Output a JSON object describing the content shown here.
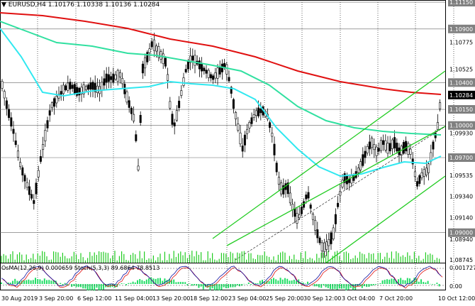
{
  "header": {
    "symbol": "EURUSD,H4",
    "ohlc": "1.10176 1.10338 1.10136 1.10284"
  },
  "indicator_header": "OsMA(12,26,9) 0.000659 Stoch(5,3,3) 89.6864 78.8513",
  "price_axis": {
    "labels": [
      "1.11150",
      "1.10900",
      "1.10775",
      "1.10525",
      "1.10400",
      "1.10284",
      "1.10150",
      "1.10000",
      "1.09930",
      "1.09700",
      "1.09535",
      "1.09340",
      "1.09140",
      "1.09000",
      "1.08940",
      "1.08745"
    ],
    "highlighted": [
      "1.11150",
      "1.10900",
      "1.10400",
      "1.10150",
      "1.10000",
      "1.09700",
      "1.09000"
    ],
    "current": "1.10284"
  },
  "sub_axis": {
    "labels": [
      "0.001727",
      "0.00"
    ]
  },
  "time_axis": [
    "30 Aug 2019",
    "3 Sep 20:00",
    "6 Sep 12:00",
    "11 Sep 04:00",
    "13 Sep 20:00",
    "18 Sep 12:00",
    "23 Sep 04:00",
    "25 Sep 20:00",
    "30 Sep 12:00",
    "3 Oct 04:00",
    "7 Oct 20:00",
    "10 Oct 12:00"
  ],
  "colors": {
    "ema_red": "#e01010",
    "ema_green": "#30e0a0",
    "ema_cyan": "#30e8f0",
    "channel": "#22cc22",
    "osma": "#22dd66",
    "stoch_main": "#1010a0",
    "stoch_signal": "#e01010"
  },
  "chart_data": {
    "type": "candlestick",
    "series": [
      {
        "name": "EURUSD,H4"
      }
    ]
  }
}
